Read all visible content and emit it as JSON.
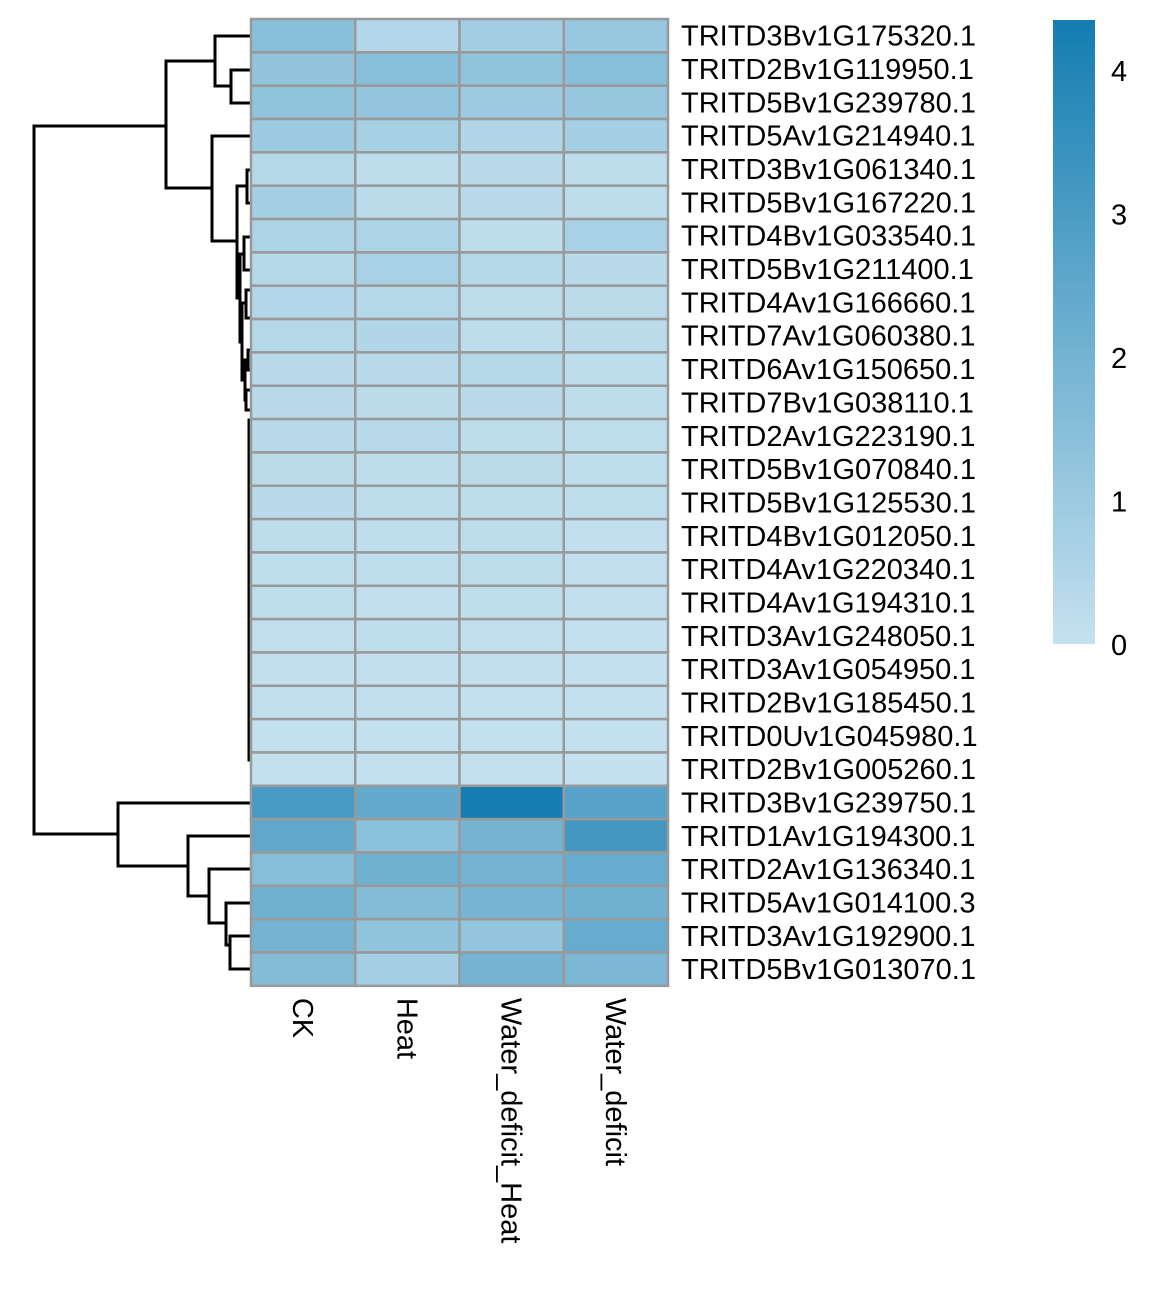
{
  "chart_data": {
    "type": "heatmap",
    "title": "",
    "columns": [
      "CK",
      "Heat",
      "Water_deficit_Heat",
      "Water_deficit"
    ],
    "rows": [
      "TRITD3Bv1G175320.1",
      "TRITD2Bv1G119950.1",
      "TRITD5Bv1G239780.1",
      "TRITD5Av1G214940.1",
      "TRITD3Bv1G061340.1",
      "TRITD5Bv1G167220.1",
      "TRITD4Bv1G033540.1",
      "TRITD5Bv1G211400.1",
      "TRITD4Av1G166660.1",
      "TRITD7Av1G060380.1",
      "TRITD6Av1G150650.1",
      "TRITD7Bv1G038110.1",
      "TRITD2Av1G223190.1",
      "TRITD5Bv1G070840.1",
      "TRITD5Bv1G125530.1",
      "TRITD4Bv1G012050.1",
      "TRITD4Av1G220340.1",
      "TRITD4Av1G194310.1",
      "TRITD3Av1G248050.1",
      "TRITD3Av1G054950.1",
      "TRITD2Bv1G185450.1",
      "TRITD0Uv1G045980.1",
      "TRITD2Bv1G005260.1",
      "TRITD3Bv1G239750.1",
      "TRITD1Av1G194300.1",
      "TRITD2Av1G136340.1",
      "TRITD5Av1G014100.3",
      "TRITD3Av1G192900.1",
      "TRITD5Bv1G013070.1"
    ],
    "values": [
      [
        1.5,
        0.45,
        0.85,
        1.1
      ],
      [
        1.25,
        1.5,
        1.3,
        1.5
      ],
      [
        1.3,
        1.2,
        0.95,
        1.15
      ],
      [
        1.0,
        0.75,
        0.5,
        0.8
      ],
      [
        0.4,
        0.2,
        0.3,
        0.2
      ],
      [
        0.8,
        0.25,
        0.3,
        0.2
      ],
      [
        0.6,
        0.6,
        0.2,
        0.7
      ],
      [
        0.4,
        0.7,
        0.4,
        0.3
      ],
      [
        0.45,
        0.4,
        0.2,
        0.25
      ],
      [
        0.4,
        0.5,
        0.2,
        0.25
      ],
      [
        0.3,
        0.3,
        0.4,
        0.2
      ],
      [
        0.3,
        0.25,
        0.3,
        0.2
      ],
      [
        0.3,
        0.3,
        0.2,
        0.15
      ],
      [
        0.25,
        0.2,
        0.25,
        0.15
      ],
      [
        0.3,
        0.2,
        0.2,
        0.15
      ],
      [
        0.2,
        0.15,
        0.2,
        0.1
      ],
      [
        0.15,
        0.15,
        0.2,
        0.1
      ],
      [
        0.15,
        0.1,
        0.15,
        0.1
      ],
      [
        0.1,
        0.15,
        0.1,
        0.05
      ],
      [
        0.1,
        0.1,
        0.1,
        0.05
      ],
      [
        0.1,
        0.1,
        0.05,
        0.05
      ],
      [
        0.05,
        0.05,
        0.05,
        0.05
      ],
      [
        0.05,
        0.05,
        0.05,
        0.0
      ],
      [
        3.1,
        2.4,
        4.3,
        2.7
      ],
      [
        2.5,
        1.4,
        2.0,
        3.2
      ],
      [
        1.55,
        2.1,
        2.0,
        2.3
      ],
      [
        2.1,
        1.6,
        1.9,
        2.1
      ],
      [
        2.0,
        1.3,
        1.2,
        2.3
      ],
      [
        1.6,
        0.8,
        2.0,
        1.8
      ]
    ],
    "color_scale": {
      "min": 0,
      "max": 4.35,
      "low_color": "#c5e1ef",
      "high_color": "#147db1",
      "ticks": [
        0,
        1,
        2,
        3,
        4
      ]
    },
    "cell_border_color": "#999999",
    "row_dendrogram": true,
    "col_dendrogram": false,
    "legend_placement": "top-right"
  }
}
